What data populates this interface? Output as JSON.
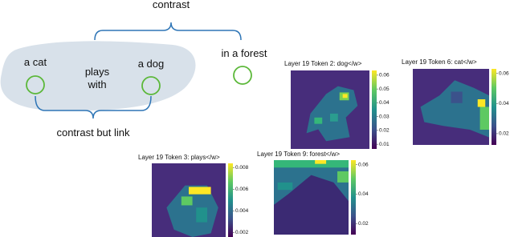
{
  "diagram": {
    "top_label": "contrast",
    "bottom_label": "contrast but link",
    "nodes": [
      {
        "lines": [
          "a cat"
        ]
      },
      {
        "lines": [
          "plays",
          "with"
        ]
      },
      {
        "lines": [
          "a dog"
        ]
      },
      {
        "lines": [
          "in a forest"
        ]
      }
    ]
  },
  "panels": [
    {
      "title": "Layer 19 Token 2: dog</w>",
      "colorbar_ticks": [
        0.06,
        0.05,
        0.04,
        0.03,
        0.02,
        0.01
      ]
    },
    {
      "title": "Layer 19 Token 6: cat</w>",
      "colorbar_ticks": [
        0.06,
        0.04,
        0.02
      ]
    },
    {
      "title": "Layer 19 Token 3: plays</w>",
      "colorbar_ticks": [
        0.008,
        0.006,
        0.004,
        0.002
      ]
    },
    {
      "title": "Layer 19 Token 9: forest</w>",
      "colorbar_ticks": [
        0.06,
        0.04,
        0.02
      ]
    }
  ]
}
